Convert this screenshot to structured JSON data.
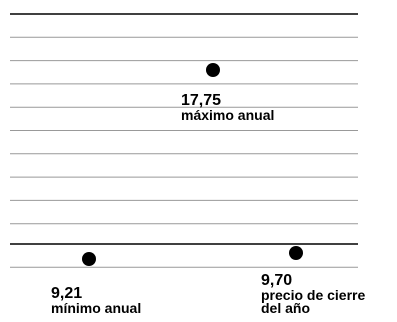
{
  "chart_data": {
    "type": "scatter",
    "y_unit_step": 0.5,
    "points": [
      {
        "key": "max",
        "value": 17.75,
        "value_label": "17,75",
        "caption": [
          "máximo anual"
        ]
      },
      {
        "key": "min",
        "value": 9.21,
        "value_label": "9,21",
        "caption": [
          "mínimo anual"
        ]
      },
      {
        "key": "close",
        "value": 9.7,
        "value_label": "9,70",
        "caption": [
          "precio de cierre",
          "del año"
        ]
      }
    ],
    "grid": true,
    "colors": {
      "ink": "#000000",
      "grid": "#999999"
    }
  }
}
